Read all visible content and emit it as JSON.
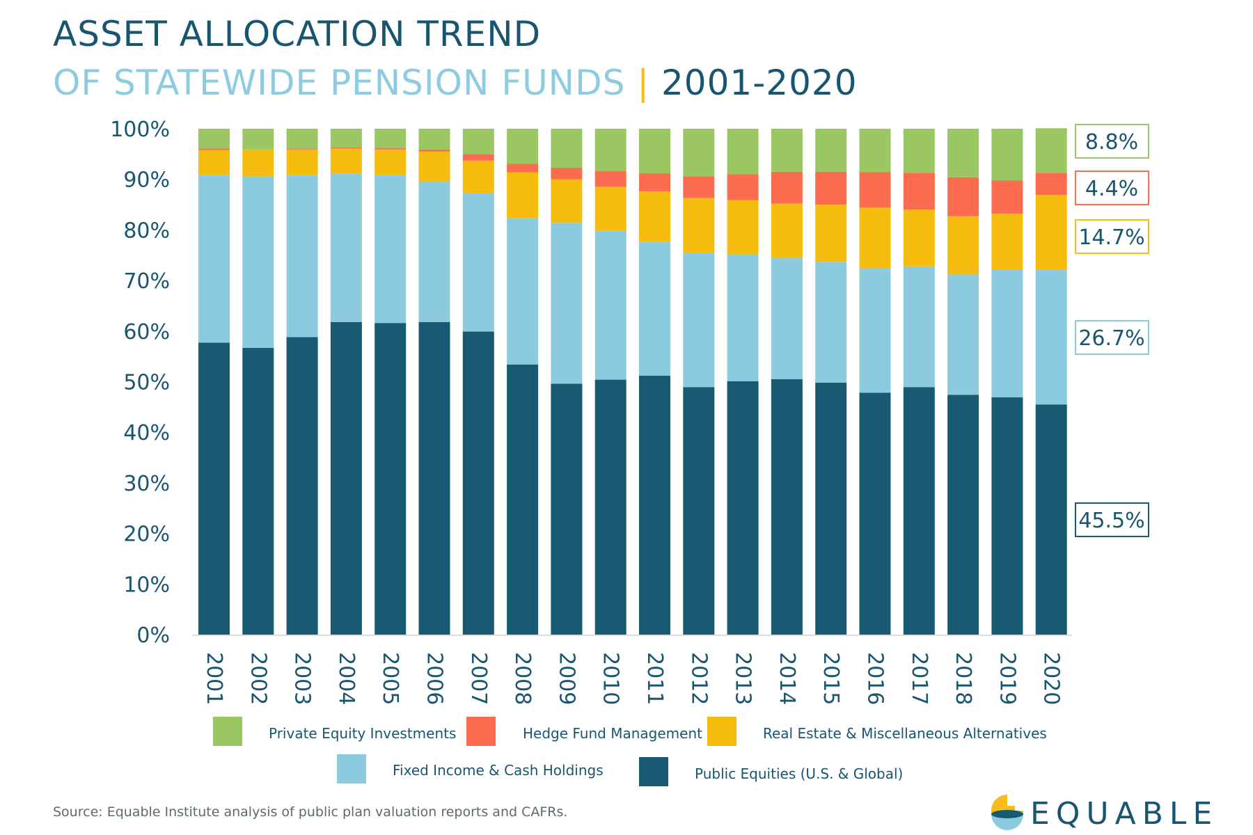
{
  "header": {
    "title_line1": "ASSET ALLOCATION TREND",
    "title_line2": "OF STATEWIDE PENSION FUNDS",
    "separator": "|",
    "years": "2001-2020"
  },
  "colors": {
    "text_dark": "#1a5570",
    "title_light": "#8dcbe0",
    "accent": "#f6bd1b"
  },
  "chart_data": {
    "type": "bar",
    "stacked": true,
    "categories": [
      "2001",
      "2002",
      "2003",
      "2004",
      "2005",
      "2006",
      "2007",
      "2008",
      "2009",
      "2010",
      "2011",
      "2012",
      "2013",
      "2014",
      "2015",
      "2016",
      "2017",
      "2018",
      "2019",
      "2020"
    ],
    "ylim": [
      0,
      100
    ],
    "y_ticks": [
      "0%",
      "10%",
      "20%",
      "30%",
      "40%",
      "50%",
      "60%",
      "70%",
      "80%",
      "90%",
      "100%"
    ],
    "grid": false,
    "legend_position": "bottom",
    "series": [
      {
        "name": "Public Equities (U.S. & Global)",
        "color": "#185a71",
        "values": [
          57.7,
          56.7,
          58.8,
          61.8,
          61.6,
          61.8,
          59.9,
          53.4,
          49.6,
          50.4,
          51.2,
          48.9,
          50.1,
          50.5,
          49.8,
          47.8,
          48.9,
          47.4,
          46.9,
          45.5
        ]
      },
      {
        "name": "Fixed Income & Cash Holdings",
        "color": "#8ccbdf",
        "values": [
          33.1,
          33.9,
          32.1,
          29.3,
          29.3,
          27.8,
          27.3,
          28.9,
          31.8,
          29.4,
          26.4,
          26.6,
          25.0,
          24.0,
          23.9,
          24.7,
          23.9,
          23.8,
          25.3,
          26.7
        ]
      },
      {
        "name": "Real Estate & Miscellaneous Alternatives",
        "color": "#f6bd0f",
        "values": [
          5.0,
          5.3,
          5.0,
          5.0,
          5.0,
          5.9,
          6.5,
          9.1,
          8.6,
          8.7,
          10.0,
          10.8,
          10.8,
          10.7,
          11.3,
          11.9,
          11.2,
          11.5,
          11.0,
          14.7
        ]
      },
      {
        "name": "Hedge Fund Management",
        "color": "#fb6d4e",
        "values": [
          0.3,
          0.0,
          0.2,
          0.2,
          0.3,
          0.4,
          1.3,
          1.7,
          2.3,
          3.1,
          3.6,
          4.3,
          5.1,
          6.3,
          6.5,
          7.0,
          7.3,
          7.7,
          6.6,
          4.4
        ]
      },
      {
        "name": "Private Equity Investments",
        "color": "#9bc763",
        "values": [
          3.9,
          4.1,
          3.9,
          3.7,
          3.8,
          4.1,
          5.0,
          6.9,
          7.7,
          8.4,
          8.8,
          9.4,
          9.0,
          8.5,
          8.5,
          8.6,
          8.7,
          9.6,
          10.2,
          8.8
        ]
      }
    ],
    "end_labels": [
      "8.8%",
      "4.4%",
      "14.7%",
      "26.7%",
      "45.5%"
    ],
    "legend_rows": [
      [
        "Private Equity Investments",
        "Hedge Fund Management",
        "Real Estate & Miscellaneous Alternatives"
      ],
      [
        "Fixed Income & Cash Holdings",
        "Public Equities (U.S. & Global)"
      ]
    ]
  },
  "footer": {
    "source": "Source: Equable Institute analysis of public plan valuation reports and CAFRs.",
    "logo_text": "EQUABLE"
  }
}
